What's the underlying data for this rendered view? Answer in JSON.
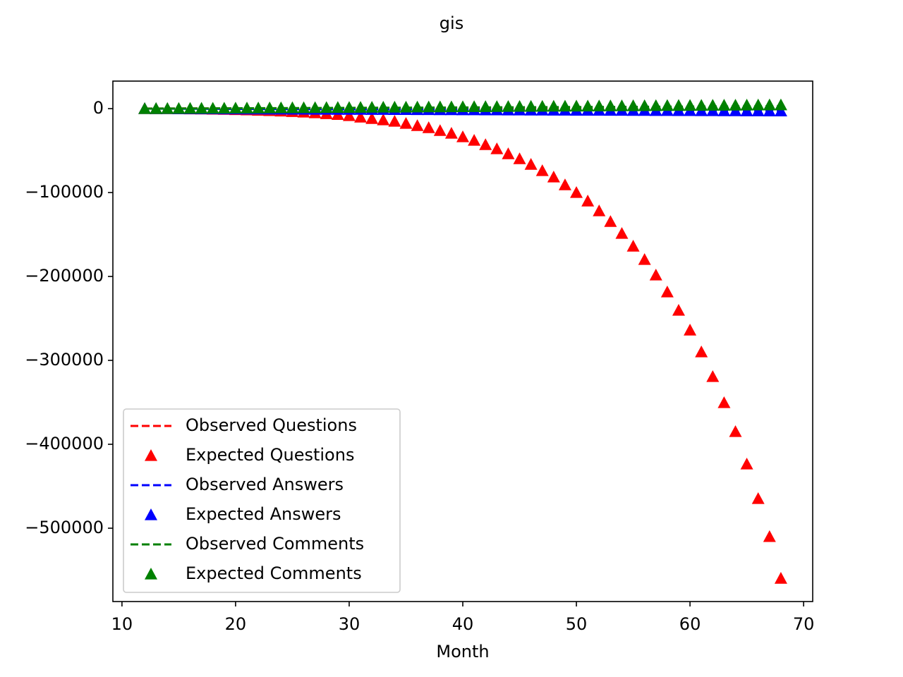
{
  "chart_data": {
    "type": "line",
    "title": "gis",
    "xlabel": "Month",
    "x": [
      12,
      13,
      14,
      15,
      16,
      17,
      18,
      19,
      20,
      21,
      22,
      23,
      24,
      25,
      26,
      27,
      28,
      29,
      30,
      31,
      32,
      33,
      34,
      35,
      36,
      37,
      38,
      39,
      40,
      41,
      42,
      43,
      44,
      45,
      46,
      47,
      48,
      49,
      50,
      51,
      52,
      53,
      54,
      55,
      56,
      57,
      58,
      59,
      60,
      61,
      62,
      63,
      64,
      65,
      66,
      67,
      68
    ],
    "series": [
      {
        "name": "Observed Questions",
        "color": "#ff0000",
        "style": "dashed",
        "values": [
          120,
          130,
          160,
          170,
          190,
          200,
          210,
          230,
          240,
          250,
          260,
          280,
          290,
          300,
          310,
          320,
          330,
          340,
          350,
          360,
          370,
          380,
          390,
          400,
          410,
          420,
          430,
          440,
          450,
          460,
          470,
          480,
          490,
          500,
          510,
          520,
          530,
          540,
          550,
          560,
          570,
          580,
          590,
          600,
          610,
          620,
          630,
          640,
          650,
          660,
          670,
          680,
          690,
          700,
          710,
          720,
          730
        ]
      },
      {
        "name": "Expected Questions",
        "color": "#ff0000",
        "style": "triangle",
        "values": [
          0,
          -50,
          -100,
          -200,
          -350,
          -500,
          -700,
          -900,
          -1200,
          -1500,
          -1900,
          -2400,
          -2900,
          -3500,
          -4200,
          -5000,
          -6000,
          -7000,
          -8400,
          -10100,
          -11800,
          -13400,
          -15100,
          -17600,
          -20200,
          -22700,
          -26100,
          -29400,
          -33600,
          -37800,
          -42900,
          -47900,
          -53800,
          -59700,
          -66400,
          -73900,
          -81500,
          -90800,
          -100000,
          -110100,
          -121800,
          -134500,
          -148700,
          -163900,
          -179800,
          -198300,
          -218500,
          -240300,
          -263900,
          -289900,
          -319300,
          -350400,
          -384900,
          -423500,
          -464700,
          -510000,
          -559700
        ]
      },
      {
        "name": "Observed Answers",
        "color": "#0000ff",
        "style": "dashed",
        "values": [
          0,
          -45,
          -90,
          -135,
          -180,
          -225,
          -270,
          -315,
          -360,
          -405,
          -450,
          -495,
          -540,
          -585,
          -630,
          -675,
          -720,
          -765,
          -810,
          -855,
          -900,
          -945,
          -990,
          -1035,
          -1080,
          -1125,
          -1170,
          -1215,
          -1260,
          -1305,
          -1350,
          -1395,
          -1440,
          -1485,
          -1530,
          -1575,
          -1620,
          -1665,
          -1710,
          -1755,
          -1800,
          -1845,
          -1890,
          -1935,
          -1980,
          -2025,
          -2070,
          -2115,
          -2160,
          -2205,
          -2250,
          -2295,
          -2340,
          -2385,
          -2430,
          -2475,
          -2520
        ]
      },
      {
        "name": "Expected Answers",
        "color": "#0000ff",
        "style": "triangle",
        "values": [
          0,
          -50,
          -100,
          -150,
          -200,
          -250,
          -300,
          -350,
          -400,
          -450,
          -500,
          -550,
          -600,
          -650,
          -700,
          -750,
          -800,
          -850,
          -900,
          -950,
          -1000,
          -1050,
          -1100,
          -1150,
          -1200,
          -1250,
          -1300,
          -1350,
          -1400,
          -1450,
          -1500,
          -1550,
          -1600,
          -1650,
          -1700,
          -1750,
          -1800,
          -1850,
          -1900,
          -1950,
          -2000,
          -2050,
          -2100,
          -2150,
          -2200,
          -2250,
          -2300,
          -2350,
          -2400,
          -2450,
          -2500,
          -2550,
          -2600,
          -2650,
          -2700,
          -2750,
          -2800
        ]
      },
      {
        "name": "Observed Comments",
        "color": "#008000",
        "style": "dashed",
        "values": [
          0,
          50,
          100,
          150,
          200,
          250,
          300,
          350,
          400,
          450,
          500,
          550,
          600,
          650,
          700,
          750,
          800,
          850,
          900,
          950,
          1000,
          1050,
          1100,
          1150,
          1200,
          1250,
          1300,
          1350,
          1400,
          1450,
          1500,
          1550,
          1600,
          1650,
          1700,
          1750,
          1800,
          1850,
          1900,
          1950,
          2000,
          2050,
          2100,
          2150,
          2200,
          2250,
          2300,
          2350,
          2400,
          2450,
          2500,
          2550,
          2600,
          2650,
          2700,
          2750,
          2800
        ]
      },
      {
        "name": "Expected Comments",
        "color": "#008000",
        "style": "triangle",
        "values": [
          0,
          80,
          160,
          240,
          320,
          400,
          480,
          560,
          640,
          720,
          800,
          880,
          960,
          1040,
          1120,
          1200,
          1280,
          1360,
          1440,
          1520,
          1600,
          1680,
          1760,
          1840,
          1920,
          2000,
          2080,
          2160,
          2240,
          2320,
          2400,
          2480,
          2560,
          2640,
          2720,
          2800,
          2880,
          2960,
          3040,
          3120,
          3200,
          3280,
          3360,
          3440,
          3520,
          3600,
          3680,
          3760,
          3840,
          3920,
          4000,
          4080,
          4160,
          4240,
          4320,
          4400,
          4480
        ]
      }
    ],
    "xlim": [
      9.2,
      70.8
    ],
    "ylim": [
      -587400,
      32800
    ],
    "xticks": [
      10,
      20,
      30,
      40,
      50,
      60,
      70
    ],
    "yticks": [
      0,
      {
        "value": -100000,
        "label": "−100000"
      },
      {
        "value": -200000,
        "label": "−200000"
      },
      {
        "value": -300000,
        "label": "−300000"
      },
      {
        "value": -400000,
        "label": "−400000"
      },
      {
        "value": -500000,
        "label": "−500000"
      }
    ],
    "legend": "lower left"
  }
}
